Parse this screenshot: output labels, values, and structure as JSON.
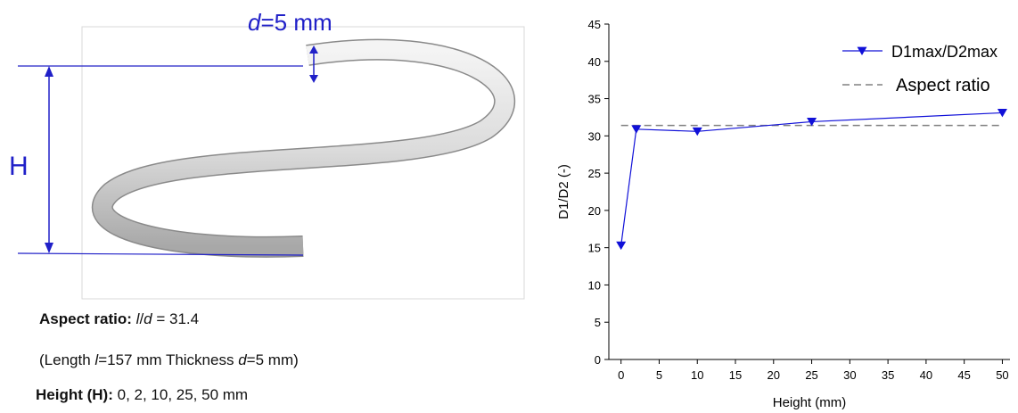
{
  "diagram": {
    "d_label": [
      "d",
      "=5 mm"
    ],
    "h_label": "H",
    "caption": {
      "aspect": [
        "Aspect ratio:",
        "l",
        "/",
        "d",
        "= 31.4"
      ],
      "length": [
        "(Length",
        "l",
        "=157 mm Thickness",
        "d",
        "=5 mm)"
      ],
      "height": [
        "Height (H):",
        "0, 2, 10, 25, 50 mm"
      ]
    }
  },
  "chart_data": {
    "type": "line",
    "x": [
      0,
      2,
      10,
      25,
      50
    ],
    "series": [
      {
        "name": "D1max/D2max",
        "color": "#1010d8",
        "values": [
          15.3,
          30.9,
          30.6,
          31.9,
          33.1
        ]
      }
    ],
    "reference_lines": [
      {
        "name": "Aspect ratio",
        "value": 31.4,
        "color": "#808080"
      }
    ],
    "xlabel": "Height (mm)",
    "ylabel": "D1/D2 (-)",
    "xlim": [
      -1.6,
      51
    ],
    "ylim": [
      0,
      45
    ],
    "xticks": [
      0,
      5,
      10,
      15,
      20,
      25,
      30,
      35,
      40,
      45,
      50
    ],
    "yticks": [
      0,
      5,
      10,
      15,
      20,
      25,
      30,
      35,
      40,
      45
    ],
    "legend": "upper right"
  }
}
